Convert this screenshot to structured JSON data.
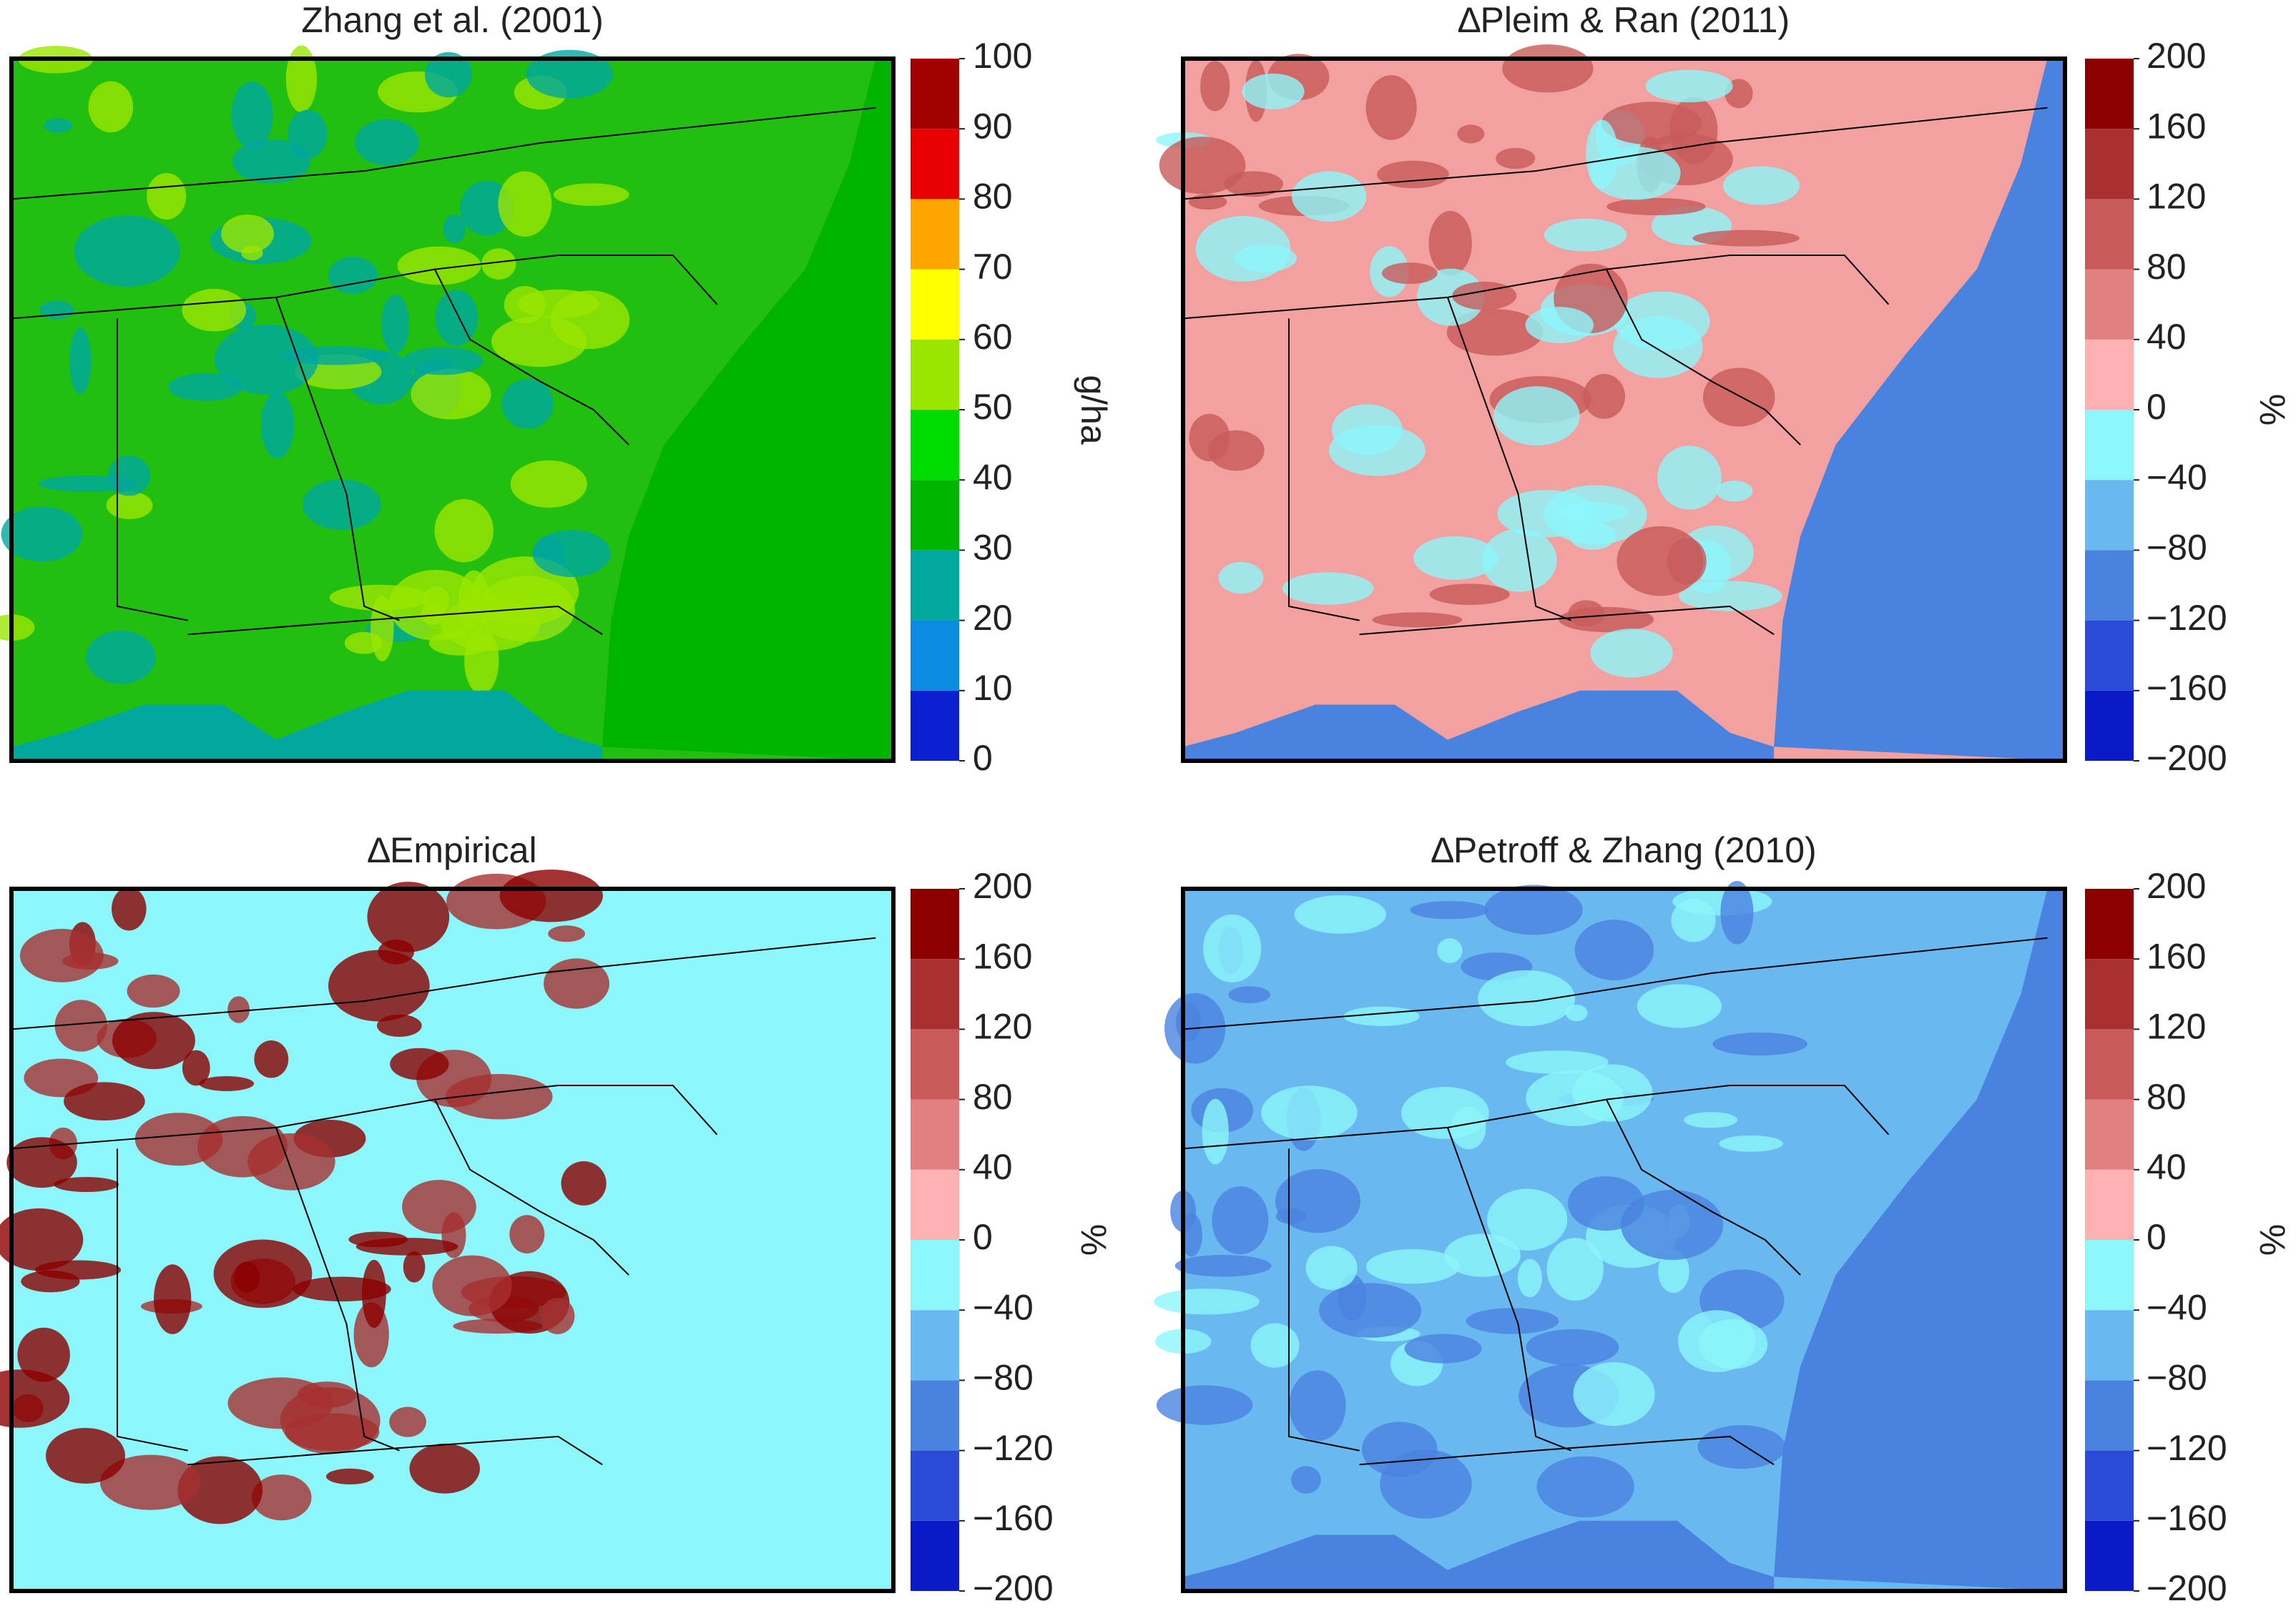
{
  "panels": [
    {
      "title": "Zhang et al. (2001)",
      "colorbar": {
        "label": "g/ha",
        "ticks": [
          0,
          10,
          20,
          30,
          40,
          50,
          60,
          70,
          80,
          90,
          100
        ],
        "colors": [
          "#0a1fd0",
          "#0a8ae0",
          "#00a8a0",
          "#00b400",
          "#00dc00",
          "#9be600",
          "#ffff00",
          "#ffa500",
          "#e60000",
          "#a00000"
        ]
      }
    },
    {
      "title": "∆Pleim & Ran (2011)",
      "colorbar": {
        "label": "%",
        "ticks": [
          {
            "value": -200,
            "label": "−200"
          },
          {
            "value": -160,
            "label": "−160"
          },
          {
            "value": -120,
            "label": "−120"
          },
          {
            "value": -80,
            "label": "−80"
          },
          {
            "value": -40,
            "label": "−40"
          },
          0,
          40,
          80,
          120,
          160,
          200
        ],
        "colors": [
          "#0a1ac8",
          "#2a4ad8",
          "#4a82e0",
          "#6ab8f0",
          "#8cf6fa",
          "#ffb0b0",
          "#e08080",
          "#c85a5a",
          "#a83030",
          "#8c0000"
        ]
      }
    },
    {
      "title": "∆Empirical",
      "colorbar": {
        "label": "%",
        "ticks": [
          {
            "value": -200,
            "label": "−200"
          },
          {
            "value": -160,
            "label": "−160"
          },
          {
            "value": -120,
            "label": "−120"
          },
          {
            "value": -80,
            "label": "−80"
          },
          {
            "value": -40,
            "label": "−40"
          },
          0,
          40,
          80,
          120,
          160,
          200
        ],
        "colors": [
          "#0a1ac8",
          "#2a4ad8",
          "#4a82e0",
          "#6ab8f0",
          "#8cf6fa",
          "#ffb0b0",
          "#e08080",
          "#c85a5a",
          "#a83030",
          "#8c0000"
        ]
      }
    },
    {
      "title": "∆Petroff & Zhang (2010)",
      "colorbar": {
        "label": "%",
        "ticks": [
          {
            "value": -200,
            "label": "−200"
          },
          {
            "value": -160,
            "label": "−160"
          },
          {
            "value": -120,
            "label": "−120"
          },
          {
            "value": -80,
            "label": "−80"
          },
          {
            "value": -40,
            "label": "−40"
          },
          0,
          40,
          80,
          120,
          160,
          200
        ],
        "colors": [
          "#0a1ac8",
          "#2a4ad8",
          "#4a82e0",
          "#6ab8f0",
          "#8cf6fa",
          "#ffb0b0",
          "#e08080",
          "#c85a5a",
          "#a83030",
          "#8c0000"
        ]
      }
    }
  ]
}
